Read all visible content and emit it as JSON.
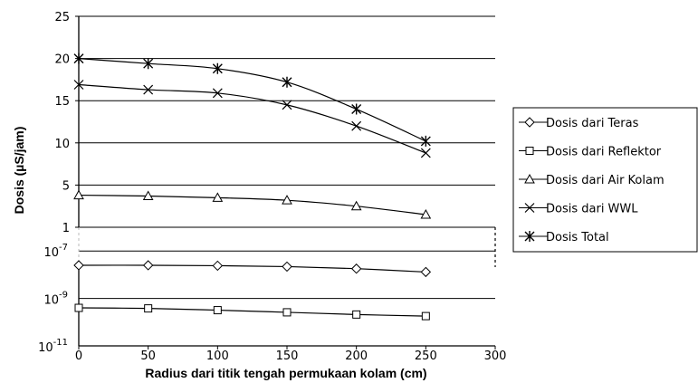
{
  "chart_data": {
    "type": "line",
    "title": "",
    "xlabel": "Radius dari titik tengah permukaan kolam (cm)",
    "ylabel": "Dosis (µS/jam)",
    "x": [
      0,
      50,
      100,
      150,
      200,
      250
    ],
    "xlim": [
      0,
      300
    ],
    "x_ticks": [
      "0",
      "50",
      "100",
      "150",
      "200",
      "250",
      "300"
    ],
    "y_upper": {
      "scale": "linear",
      "ylim": [
        0,
        25
      ],
      "ticks": [
        "1",
        "5",
        "10",
        "15",
        "20",
        "25"
      ]
    },
    "y_lower": {
      "scale": "log",
      "ylim": [
        1e-11,
        1e-06
      ],
      "ticks": [
        {
          "base": "10",
          "exp": "-11"
        },
        {
          "base": "10",
          "exp": "-9"
        },
        {
          "base": "10",
          "exp": "-7"
        }
      ]
    },
    "grid": true,
    "legend_position": "right",
    "series": [
      {
        "name": "Dosis dari Teras",
        "marker": "diamond",
        "segment": "lower",
        "values": [
          2.5e-08,
          2.5e-08,
          2.4e-08,
          2.2e-08,
          1.8e-08,
          1.3e-08
        ]
      },
      {
        "name": "Dosis dari Reflektor",
        "marker": "square",
        "segment": "lower",
        "values": [
          4e-10,
          3.8e-10,
          3.2e-10,
          2.6e-10,
          2.1e-10,
          1.8e-10
        ]
      },
      {
        "name": "Dosis dari Air Kolam",
        "marker": "triangle",
        "segment": "upper",
        "values": [
          3.8,
          3.7,
          3.5,
          3.2,
          2.5,
          1.5
        ]
      },
      {
        "name": "Dosis dari WWL",
        "marker": "x",
        "segment": "upper",
        "values": [
          16.9,
          16.3,
          15.9,
          14.5,
          12.0,
          8.8
        ]
      },
      {
        "name": "Dosis Total",
        "marker": "asterisk",
        "segment": "upper",
        "values": [
          20.0,
          19.4,
          18.8,
          17.2,
          14.0,
          10.2
        ]
      }
    ]
  }
}
